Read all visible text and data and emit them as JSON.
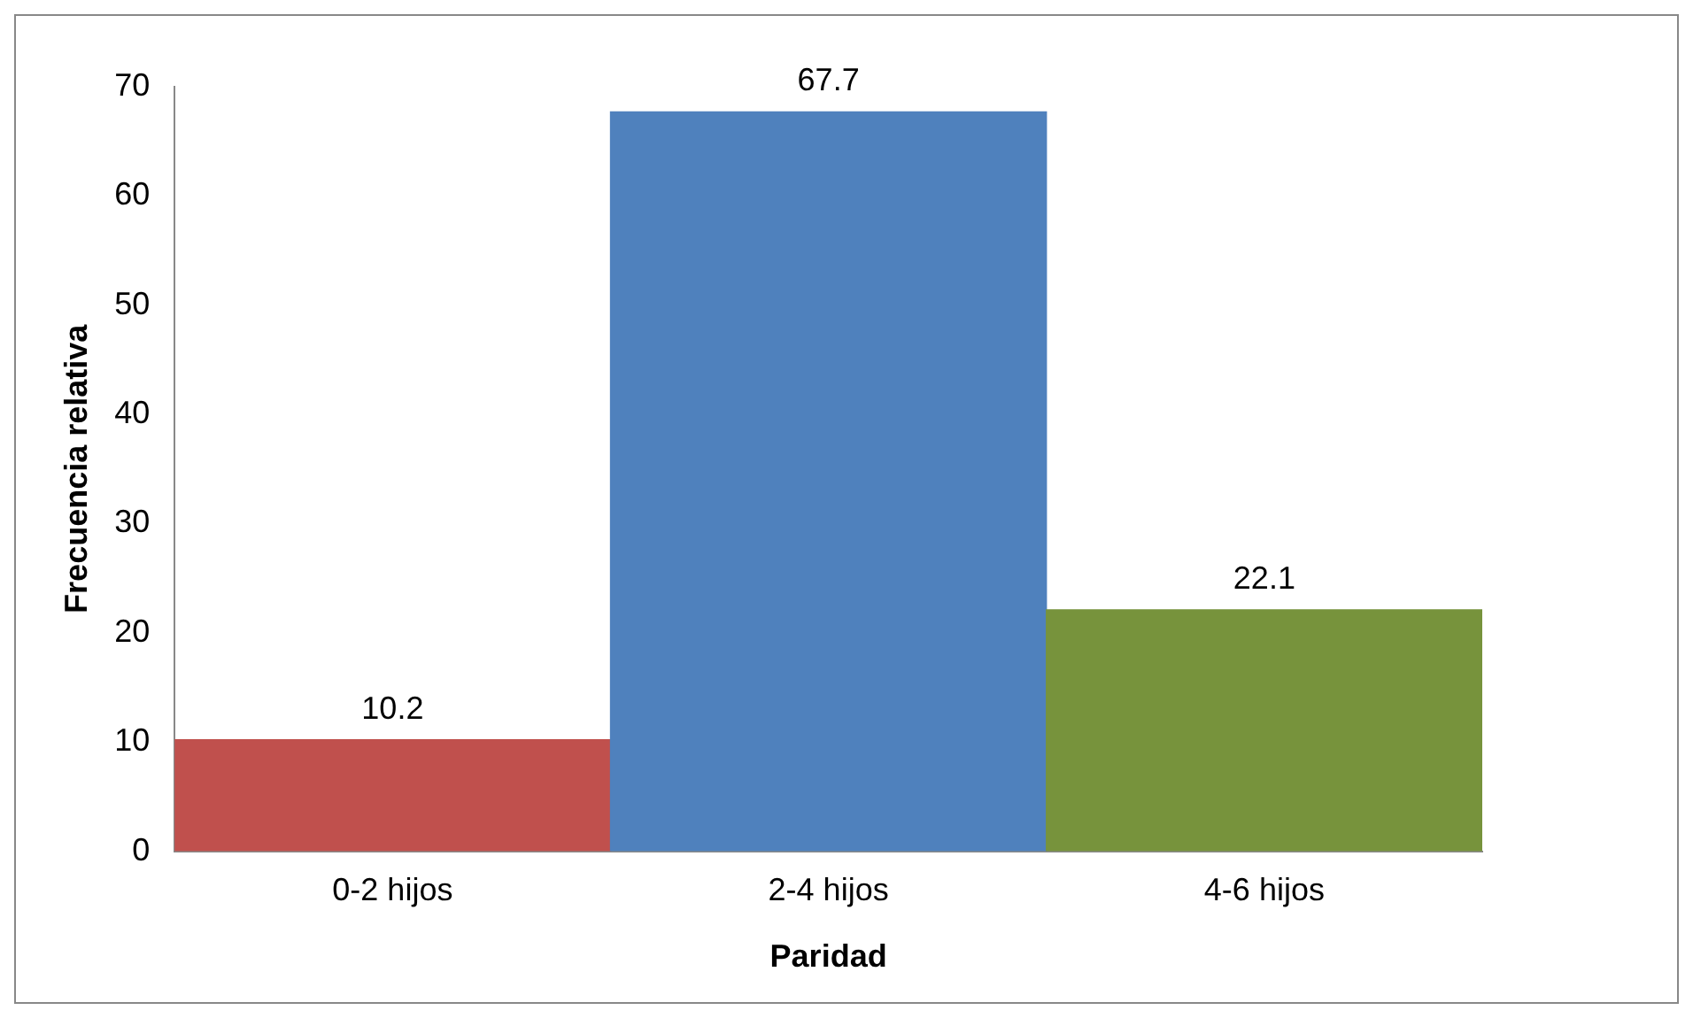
{
  "chart_data": {
    "type": "bar",
    "xlabel": "Paridad",
    "ylabel": "Frecuencia relativa",
    "categories": [
      "0-2 hijos",
      "2-4 hijos",
      "4-6 hijos"
    ],
    "values": [
      10.2,
      67.7,
      22.1
    ],
    "colors": [
      "#c0504d",
      "#4f81bd",
      "#77933c"
    ],
    "ylim": [
      0,
      70
    ],
    "yticks": [
      0,
      10,
      20,
      30,
      40,
      50,
      60,
      70
    ],
    "grid": false,
    "legend": false,
    "data_labels": true
  }
}
